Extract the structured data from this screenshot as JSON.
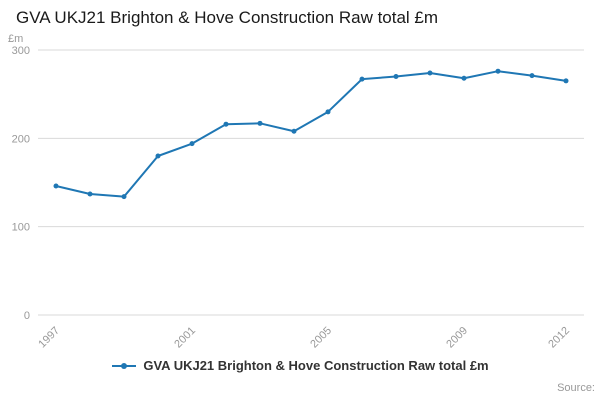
{
  "page": {
    "source_label": "Source:"
  },
  "legend": {
    "label": "GVA UKJ21 Brighton & Hove Construction Raw total £m"
  },
  "chart_data": {
    "type": "line",
    "title": "GVA UKJ21 Brighton & Hove Construction Raw total £m",
    "ylabel": "£m",
    "xlabel": "",
    "x": [
      1997,
      1998,
      1999,
      2000,
      2001,
      2002,
      2003,
      2004,
      2005,
      2006,
      2007,
      2008,
      2009,
      2010,
      2011,
      2012
    ],
    "values": [
      146,
      137,
      134,
      180,
      194,
      216,
      217,
      208,
      230,
      267,
      270,
      274,
      268,
      276,
      271,
      265
    ],
    "ylim": [
      0,
      300
    ],
    "y_ticks": [
      0,
      100,
      200,
      300
    ],
    "x_ticks": [
      1997,
      2001,
      2005,
      2009,
      2012
    ],
    "grid": true,
    "legend_position": "bottom",
    "line_color": "#1f77b4",
    "grid_color": "#d9d9d9",
    "tick_color": "#999999"
  }
}
